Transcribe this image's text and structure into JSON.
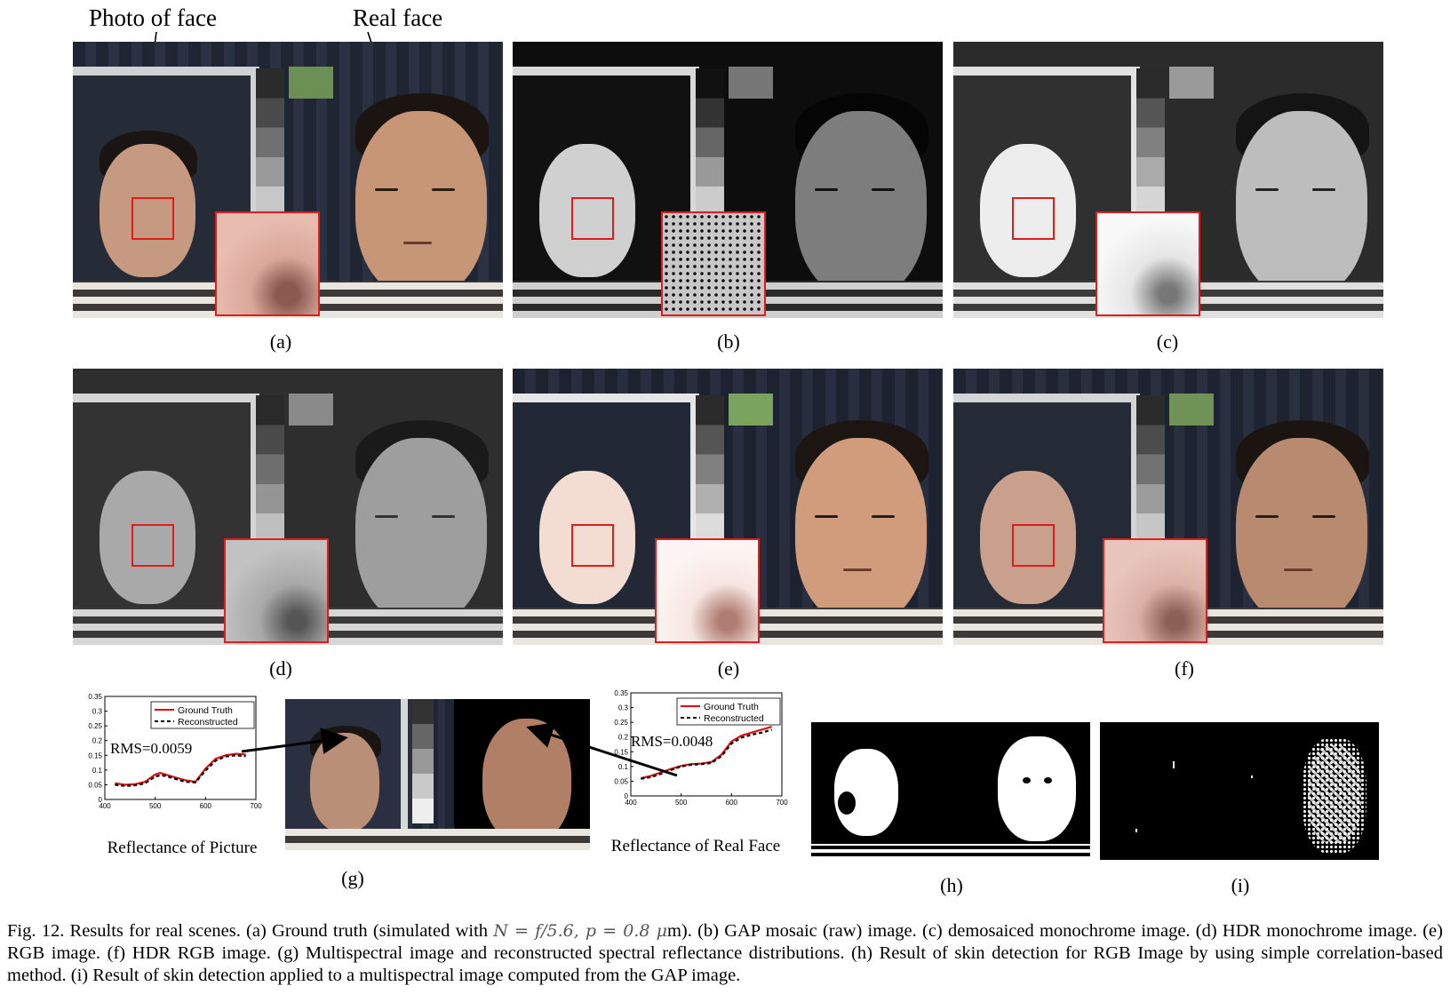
{
  "annotations": {
    "photo_of_face": "Photo of face",
    "real_face": "Real face"
  },
  "panel_labels": [
    "(a)",
    "(b)",
    "(c)",
    "(d)",
    "(e)",
    "(f)",
    "(g)",
    "(h)",
    "(i)"
  ],
  "charts": [
    {
      "title": "Reflectance of Picture",
      "rms": "RMS=0.0059",
      "legend": [
        "Ground Truth",
        "Reconstructed"
      ],
      "xticks": [
        "400",
        "500",
        "600",
        "700"
      ],
      "yticks": [
        "0",
        "0.05",
        "0.1",
        "0.15",
        "0.2",
        "0.25",
        "0.3",
        "0.35"
      ]
    },
    {
      "title": "Reflectance of Real Face",
      "rms": "RMS=0.0048",
      "legend": [
        "Ground Truth",
        "Reconstructed"
      ],
      "xticks": [
        "400",
        "500",
        "600",
        "700"
      ],
      "yticks": [
        "0",
        "0.05",
        "0.1",
        "0.15",
        "0.2",
        "0.25",
        "0.3",
        "0.35"
      ]
    }
  ],
  "chart_data": [
    {
      "type": "line",
      "title": "Reflectance of Picture",
      "xlim": [
        400,
        700
      ],
      "ylim": [
        0,
        0.35
      ],
      "grid": false,
      "legend_position": "top-right",
      "x": [
        420,
        440,
        460,
        480,
        500,
        510,
        520,
        540,
        560,
        580,
        600,
        620,
        640,
        660,
        680
      ],
      "series": [
        {
          "name": "Ground Truth",
          "color": "#e01010",
          "style": "solid",
          "values": [
            0.055,
            0.05,
            0.052,
            0.06,
            0.085,
            0.09,
            0.085,
            0.075,
            0.065,
            0.06,
            0.105,
            0.138,
            0.15,
            0.155,
            0.153
          ]
        },
        {
          "name": "Reconstructed",
          "color": "#000000",
          "style": "dashed",
          "values": [
            0.05,
            0.046,
            0.048,
            0.055,
            0.078,
            0.082,
            0.08,
            0.07,
            0.06,
            0.058,
            0.098,
            0.132,
            0.146,
            0.15,
            0.147
          ]
        }
      ]
    },
    {
      "type": "line",
      "title": "Reflectance of Real Face",
      "xlim": [
        400,
        700
      ],
      "ylim": [
        0,
        0.35
      ],
      "grid": false,
      "legend_position": "top-right",
      "x": [
        420,
        440,
        460,
        480,
        500,
        520,
        540,
        560,
        580,
        600,
        620,
        640,
        660,
        680
      ],
      "series": [
        {
          "name": "Ground Truth",
          "color": "#e01010",
          "style": "solid",
          "values": [
            0.06,
            0.068,
            0.08,
            0.092,
            0.102,
            0.108,
            0.11,
            0.115,
            0.14,
            0.185,
            0.205,
            0.215,
            0.225,
            0.235
          ]
        },
        {
          "name": "Reconstructed",
          "color": "#000000",
          "style": "dashed",
          "values": [
            0.058,
            0.064,
            0.075,
            0.088,
            0.1,
            0.106,
            0.108,
            0.112,
            0.135,
            0.178,
            0.198,
            0.208,
            0.215,
            0.225
          ]
        }
      ]
    }
  ],
  "caption": {
    "lead": "Fig. 12.   Results for real scenes. (a) Ground truth (simulated with ",
    "math": "N = f/5.6, p = 0.8 μ",
    "rest": "m). (b) GAP mosaic (raw) image. (c) demosaiced monochrome image. (d) HDR monochrome image. (e) RGB image. (f) HDR RGB image. (g) Multispectral image and reconstructed spectral reflectance distributions. (h) Result of skin detection for RGB Image by using simple correlation-based method. (i) Result of skin detection applied to a multispectral image computed from the GAP image."
  }
}
